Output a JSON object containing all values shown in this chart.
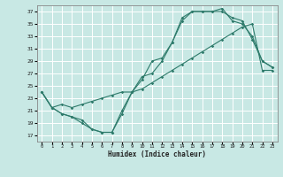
{
  "xlabel": "Humidex (Indice chaleur)",
  "bg_color": "#c8e8e4",
  "grid_color": "#ffffff",
  "line_color": "#2d7a6a",
  "xlim": [
    -0.5,
    23.5
  ],
  "ylim": [
    16.0,
    38.0
  ],
  "xticks": [
    0,
    1,
    2,
    3,
    4,
    5,
    6,
    7,
    8,
    9,
    10,
    11,
    12,
    13,
    14,
    15,
    16,
    17,
    18,
    19,
    20,
    21,
    22,
    23
  ],
  "yticks": [
    17,
    19,
    21,
    23,
    25,
    27,
    29,
    31,
    33,
    35,
    37
  ],
  "curve1_x": [
    0,
    1,
    2,
    3,
    4,
    5,
    6,
    7,
    8,
    9,
    10,
    11,
    12,
    13,
    14,
    15,
    16,
    17,
    18,
    19,
    20,
    21,
    22,
    23
  ],
  "curve1_y": [
    24,
    21.5,
    20.5,
    20,
    19.5,
    18,
    17.5,
    17.5,
    21,
    24,
    26.5,
    27,
    29,
    32,
    36,
    37,
    37,
    37,
    37,
    36,
    35.5,
    32.5,
    29,
    28
  ],
  "curve2_x": [
    0,
    1,
    2,
    3,
    4,
    5,
    6,
    7,
    8,
    9,
    10,
    11,
    12,
    13,
    14,
    15,
    16,
    17,
    18,
    19,
    20,
    21,
    22,
    23
  ],
  "curve2_y": [
    24,
    21.5,
    20.5,
    20,
    19,
    18,
    17.5,
    17.5,
    20.5,
    24,
    26,
    29,
    29.5,
    32,
    35.5,
    37,
    37,
    37,
    37.5,
    35.5,
    35,
    33,
    29,
    28
  ],
  "curve3_x": [
    0,
    1,
    2,
    3,
    4,
    5,
    6,
    7,
    8,
    9,
    10,
    11,
    12,
    13,
    14,
    15,
    16,
    17,
    18,
    19,
    20,
    21,
    22,
    23
  ],
  "curve3_y": [
    24,
    21.5,
    22,
    21.5,
    22,
    22.5,
    23,
    23.5,
    24,
    24,
    24.5,
    25.5,
    26.5,
    27.5,
    28.5,
    29.5,
    30.5,
    31.5,
    32.5,
    33.5,
    34.5,
    35,
    27.5,
    27.5
  ]
}
